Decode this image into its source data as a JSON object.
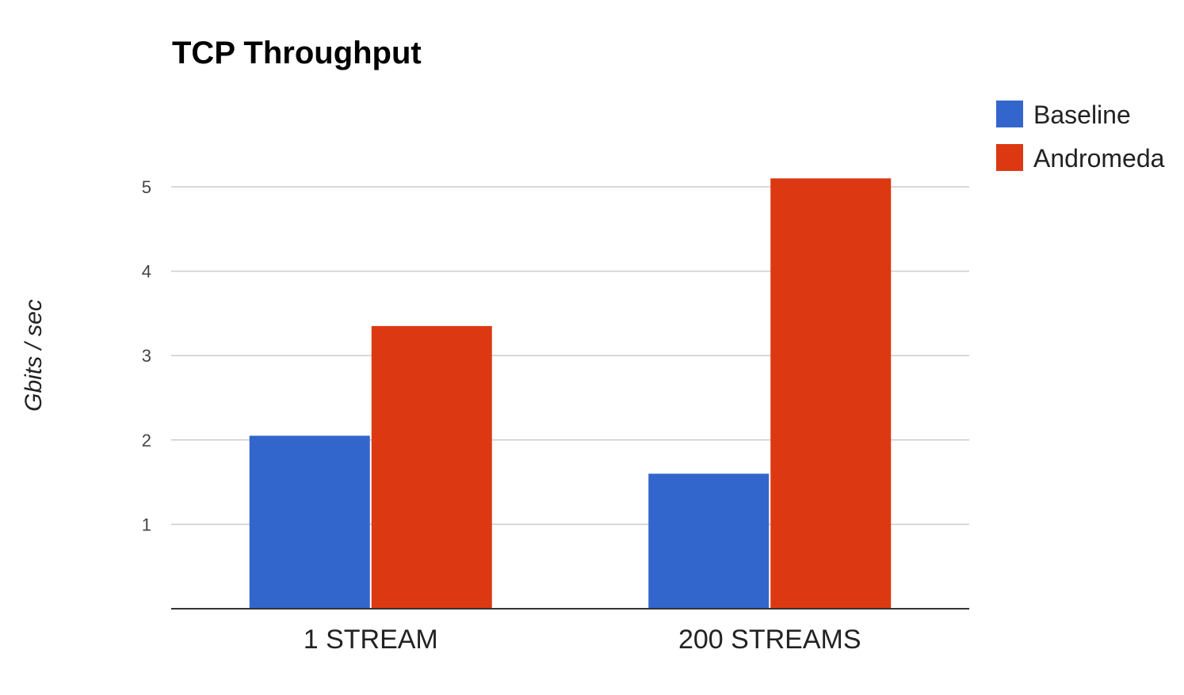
{
  "chart_data": {
    "type": "bar",
    "title": "TCP Throughput",
    "xlabel": "",
    "ylabel": "Gbits / sec",
    "categories": [
      "1 STREAM",
      "200 STREAMS"
    ],
    "series": [
      {
        "name": "Baseline",
        "color": "#3366CC",
        "values": [
          2.05,
          1.6
        ]
      },
      {
        "name": "Andromeda",
        "color": "#DC3912",
        "values": [
          3.35,
          5.1
        ]
      }
    ],
    "yticks": [
      1,
      2,
      3,
      4,
      5
    ],
    "ylim": [
      0,
      5.5
    ],
    "grid": true,
    "legend_position": "top-right"
  }
}
